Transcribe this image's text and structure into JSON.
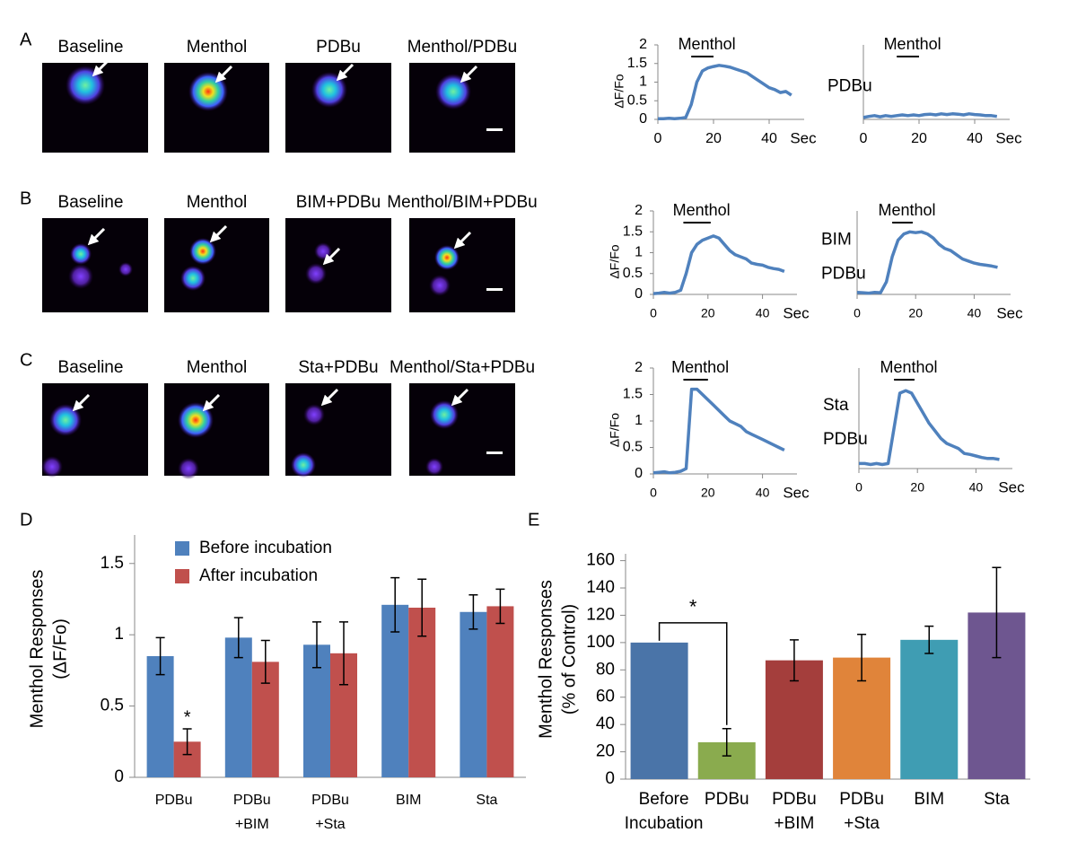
{
  "panels": [
    {
      "label": "A",
      "captions": [
        "Baseline",
        "Menthol",
        "PDBu",
        "Menthol/PDBu"
      ],
      "traces": [
        {
          "type": "line",
          "ylabel": "ΔF/Fo",
          "annotation": "Menthol",
          "menthol_bar": [
            12,
            20
          ],
          "xlabel": "Sec",
          "x": [
            0,
            2,
            4,
            6,
            8,
            10,
            12,
            14,
            16,
            18,
            20,
            22,
            24,
            26,
            28,
            30,
            32,
            34,
            36,
            38,
            40,
            42,
            44,
            46,
            48
          ],
          "values": [
            0.02,
            0.02,
            0.03,
            0.02,
            0.03,
            0.05,
            0.4,
            1.0,
            1.3,
            1.38,
            1.42,
            1.45,
            1.43,
            1.4,
            1.35,
            1.3,
            1.25,
            1.15,
            1.05,
            0.95,
            0.85,
            0.8,
            0.72,
            0.75,
            0.65
          ],
          "xlim": [
            0,
            50
          ],
          "xticks": [
            0,
            20,
            40
          ],
          "ylim": [
            0,
            2
          ],
          "yticks": [
            0,
            0.5,
            1,
            1.5,
            2
          ]
        },
        {
          "type": "line",
          "annotation": "Menthol",
          "menthol_bar": [
            12,
            20
          ],
          "label": [
            "PDBu"
          ],
          "xlabel": "Sec",
          "x": [
            0,
            2,
            4,
            6,
            8,
            10,
            12,
            14,
            16,
            18,
            20,
            22,
            24,
            26,
            28,
            30,
            32,
            34,
            36,
            38,
            40,
            42,
            44,
            46,
            48
          ],
          "values": [
            0.05,
            0.08,
            0.1,
            0.07,
            0.1,
            0.08,
            0.1,
            0.12,
            0.1,
            0.12,
            0.1,
            0.13,
            0.14,
            0.12,
            0.15,
            0.13,
            0.15,
            0.14,
            0.12,
            0.15,
            0.13,
            0.12,
            0.1,
            0.1,
            0.08
          ],
          "xlim": [
            0,
            50
          ],
          "xticks": [
            0,
            20,
            40
          ],
          "ylim": [
            0,
            2
          ]
        }
      ]
    },
    {
      "label": "B",
      "captions": [
        "Baseline",
        "Menthol",
        "BIM+PDBu",
        "Menthol/BIM+PDBu"
      ],
      "traces": [
        {
          "type": "line",
          "ylabel": "ΔF/Fo",
          "annotation": "Menthol",
          "menthol_bar": [
            11,
            21
          ],
          "xlabel": "Sec",
          "x": [
            0,
            2,
            4,
            6,
            8,
            10,
            12,
            14,
            16,
            18,
            20,
            22,
            24,
            26,
            28,
            30,
            32,
            34,
            36,
            38,
            40,
            42,
            44,
            46,
            48
          ],
          "values": [
            0.02,
            0.03,
            0.05,
            0.03,
            0.05,
            0.1,
            0.5,
            1.0,
            1.2,
            1.3,
            1.35,
            1.4,
            1.35,
            1.2,
            1.05,
            0.95,
            0.9,
            0.85,
            0.75,
            0.72,
            0.7,
            0.65,
            0.62,
            0.6,
            0.55
          ],
          "xlim": [
            0,
            50
          ],
          "xticks": [
            0,
            20,
            40
          ],
          "ylim": [
            0,
            2
          ],
          "yticks": [
            0,
            0.5,
            1,
            1.5,
            2
          ]
        },
        {
          "type": "line",
          "annotation": "Menthol",
          "menthol_bar": [
            12,
            19
          ],
          "label": [
            "BIM",
            "PDBu"
          ],
          "xlabel": "Sec",
          "x": [
            0,
            2,
            4,
            6,
            8,
            10,
            12,
            14,
            16,
            18,
            20,
            22,
            24,
            26,
            28,
            30,
            32,
            34,
            36,
            38,
            40,
            42,
            44,
            46,
            48
          ],
          "values": [
            0.05,
            0.04,
            0.03,
            0.05,
            0.04,
            0.3,
            0.9,
            1.3,
            1.45,
            1.5,
            1.48,
            1.5,
            1.45,
            1.35,
            1.2,
            1.1,
            1.05,
            0.95,
            0.85,
            0.8,
            0.75,
            0.72,
            0.7,
            0.68,
            0.65
          ],
          "xlim": [
            0,
            50
          ],
          "xticks": [
            0,
            20,
            40
          ],
          "ylim": [
            0,
            2
          ]
        }
      ]
    },
    {
      "label": "C",
      "captions": [
        "Baseline",
        "Menthol",
        "Sta+PDBu",
        "Menthol/Sta+PDBu"
      ],
      "traces": [
        {
          "type": "line",
          "ylabel": "ΔF/Fo",
          "annotation": "Menthol",
          "menthol_bar": [
            11,
            20
          ],
          "xlabel": "Sec",
          "x": [
            0,
            2,
            4,
            6,
            8,
            10,
            12,
            14,
            16,
            18,
            20,
            22,
            24,
            26,
            28,
            30,
            32,
            34,
            36,
            38,
            40,
            42,
            44,
            46,
            48
          ],
          "values": [
            0.02,
            0.03,
            0.04,
            0.02,
            0.03,
            0.05,
            0.1,
            1.6,
            1.6,
            1.5,
            1.4,
            1.3,
            1.2,
            1.1,
            1.0,
            0.95,
            0.9,
            0.8,
            0.75,
            0.7,
            0.65,
            0.6,
            0.55,
            0.5,
            0.45
          ],
          "xlim": [
            0,
            50
          ],
          "xticks": [
            0,
            20,
            40
          ],
          "ylim": [
            0,
            2
          ],
          "yticks": [
            0,
            0.5,
            1,
            1.5,
            2
          ]
        },
        {
          "type": "line",
          "annotation": "Menthol",
          "menthol_bar": [
            12,
            19
          ],
          "label": [
            "Sta",
            "PDBu"
          ],
          "xlabel": "Sec",
          "x": [
            0,
            2,
            4,
            6,
            8,
            10,
            12,
            14,
            16,
            18,
            20,
            22,
            24,
            26,
            28,
            30,
            32,
            34,
            36,
            38,
            40,
            42,
            44,
            46,
            48
          ],
          "values": [
            0.1,
            0.1,
            0.08,
            0.1,
            0.08,
            0.1,
            0.8,
            1.5,
            1.55,
            1.5,
            1.3,
            1.1,
            0.9,
            0.75,
            0.6,
            0.5,
            0.45,
            0.4,
            0.3,
            0.28,
            0.25,
            0.22,
            0.2,
            0.2,
            0.18
          ],
          "xlim": [
            0,
            50
          ],
          "xticks": [
            0,
            20,
            40
          ],
          "ylim": [
            0,
            2
          ]
        }
      ]
    }
  ],
  "chart_data": [
    {
      "type": "bar",
      "label": "D",
      "ylabel": [
        "Menthol Responses",
        "(ΔF/Fo)"
      ],
      "categories": [
        [
          "PDBu"
        ],
        [
          "PDBu",
          "+BIM"
        ],
        [
          "PDBu",
          "+Sta"
        ],
        [
          "BIM"
        ],
        [
          "Sta"
        ]
      ],
      "series": [
        {
          "name": "Before incubation",
          "color": "#4f81bd",
          "values": [
            0.85,
            0.98,
            0.93,
            1.21,
            1.16
          ],
          "errors": [
            0.13,
            0.14,
            0.16,
            0.19,
            0.12
          ]
        },
        {
          "name": "After incubation",
          "color": "#c0504d",
          "values": [
            0.25,
            0.81,
            0.87,
            1.19,
            1.2
          ],
          "errors": [
            0.09,
            0.15,
            0.22,
            0.2,
            0.12
          ]
        }
      ],
      "annotation": "*",
      "ylim": [
        0,
        1.7
      ],
      "yticks": [
        0,
        0.5,
        1,
        1.5
      ]
    },
    {
      "type": "bar",
      "label": "E",
      "ylabel": [
        "Menthol Responses",
        "(% of Control)"
      ],
      "categories": [
        [
          "Before",
          "Incubation"
        ],
        [
          "PDBu"
        ],
        [
          "PDBu",
          "+BIM"
        ],
        [
          "PDBu",
          "+Sta"
        ],
        [
          "BIM"
        ],
        [
          "Sta"
        ]
      ],
      "values": [
        100,
        27,
        87,
        89,
        102,
        122
      ],
      "errors": [
        null,
        10,
        15,
        17,
        10,
        33
      ],
      "colors": [
        "#4a74a8",
        "#8aab4e",
        "#a43e3c",
        "#e0843a",
        "#3f9db3",
        "#6e5690"
      ],
      "annotation": "*",
      "ylim": [
        0,
        165
      ],
      "yticks": [
        0,
        20,
        40,
        60,
        80,
        100,
        120,
        140,
        160
      ]
    }
  ]
}
